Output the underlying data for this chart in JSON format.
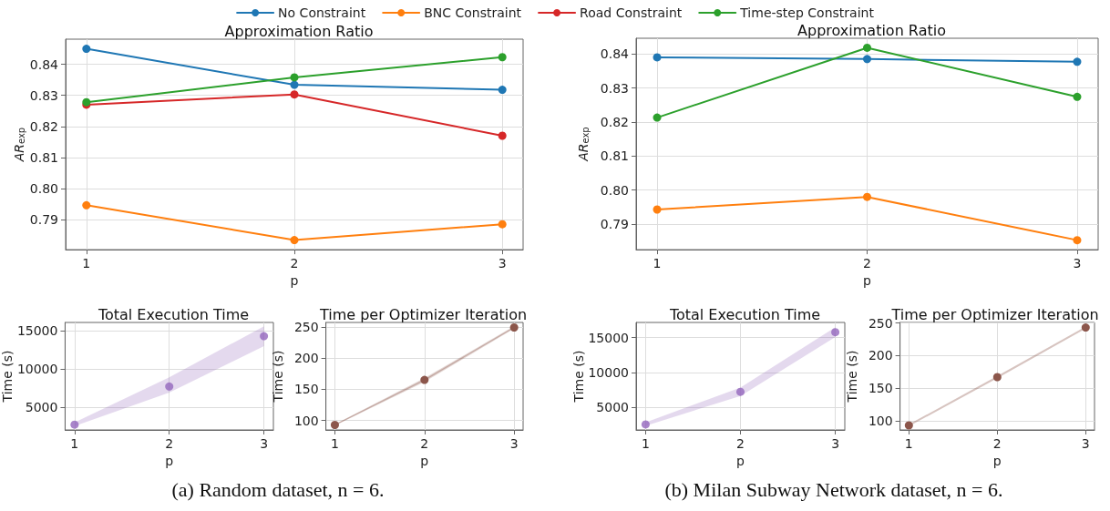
{
  "chart_data": [
    {
      "type": "line",
      "title": "Approximation Ratio",
      "xlabel": "p",
      "ylabel": "AR$_{exp}$",
      "x": [
        1,
        2,
        3
      ],
      "xlim": [
        0.9,
        3.1
      ],
      "xticks": [
        1,
        2,
        3
      ],
      "ylim": [
        0.7803,
        0.8481
      ],
      "yticks": [
        0.79,
        {
          "value": 0.8,
          "label": "0.80"
        },
        0.81,
        0.82,
        0.83,
        0.84
      ],
      "grid": true,
      "legend": "top",
      "marker": "circle",
      "series": [
        {
          "name": "No Constraint",
          "color": "#1f77b4",
          "values": [
            0.845,
            0.8334,
            0.8318
          ]
        },
        {
          "name": "BNC Constraint",
          "color": "#ff7f0e",
          "values": [
            0.7946,
            0.7834,
            0.7885
          ]
        },
        {
          "name": "Road Constraint",
          "color": "#d62728",
          "values": [
            0.827,
            0.8303,
            0.817
          ]
        },
        {
          "name": "Time-step Constraint",
          "color": "#2ca02c",
          "values": [
            0.8278,
            0.8358,
            0.8423
          ]
        }
      ]
    },
    {
      "type": "line",
      "title": "Approximation Ratio",
      "xlabel": "p",
      "ylabel": "AR$_{exp}$",
      "x": [
        1,
        2,
        3
      ],
      "xlim": [
        0.9,
        3.1
      ],
      "xticks": [
        1,
        2,
        3
      ],
      "ylim": [
        0.7825,
        0.8446
      ],
      "yticks": [
        0.79,
        {
          "value": 0.8,
          "label": "0.80"
        },
        0.81,
        0.82,
        0.83,
        0.84
      ],
      "grid": true,
      "marker": "circle",
      "series": [
        {
          "color": "#1f77b4",
          "values": [
            0.839,
            0.8385,
            0.8377
          ]
        },
        {
          "color": "#ff7f0e",
          "values": [
            0.7943,
            0.798,
            0.7853
          ]
        },
        {
          "color": "#2ca02c",
          "values": [
            0.8213,
            0.8418,
            0.8274
          ]
        }
      ]
    },
    {
      "type": "scatter",
      "title": "Total Execution Time",
      "xlabel": "p",
      "ylabel": "Time (s)",
      "x": [
        1,
        2,
        3
      ],
      "xlim": [
        0.9,
        3.1
      ],
      "xticks": [
        1,
        2,
        3
      ],
      "ylim": [
        2000,
        16100
      ],
      "yticks": [
        5000,
        10000,
        15000
      ],
      "grid": true,
      "marker": "circle",
      "annotations": [
        "(a) Random dataset, n = 6."
      ],
      "series": [
        {
          "color": "#9467bd",
          "values": [
            2700,
            7700,
            14300
          ],
          "lower": [
            2500,
            6900,
            13000
          ],
          "upper": [
            3000,
            8900,
            15600
          ]
        }
      ]
    },
    {
      "type": "line",
      "title": "Time per Optimizer Iteration",
      "xlabel": "p",
      "ylabel": "Time (s)",
      "x": [
        1,
        2,
        3
      ],
      "xlim": [
        0.9,
        3.1
      ],
      "xticks": [
        1,
        2,
        3
      ],
      "ylim": [
        85,
        257
      ],
      "yticks": [
        100,
        150,
        200,
        250
      ],
      "grid": true,
      "marker": "circle",
      "series": [
        {
          "color": "#8c564b",
          "values": [
            93,
            165,
            249
          ],
          "lower": [
            92,
            162,
            247
          ],
          "upper": [
            94,
            168,
            251
          ]
        }
      ]
    },
    {
      "type": "scatter",
      "title": "Total Execution Time",
      "xlabel": "p",
      "ylabel": "Time (s)",
      "x": [
        1,
        2,
        3
      ],
      "xlim": [
        0.9,
        3.1
      ],
      "xticks": [
        1,
        2,
        3
      ],
      "ylim": [
        1700,
        17200
      ],
      "yticks": [
        5000,
        10000,
        15000
      ],
      "grid": true,
      "marker": "circle",
      "annotations": [
        "(b) Milan Subway Network dataset, n = 6."
      ],
      "series": [
        {
          "color": "#9467bd",
          "values": [
            2500,
            7200,
            15800
          ],
          "lower": [
            2300,
            6600,
            15100
          ],
          "upper": [
            2800,
            7800,
            16500
          ]
        }
      ]
    },
    {
      "type": "line",
      "title": "Time per Optimizer Iteration",
      "xlabel": "p",
      "ylabel": "Time (s)",
      "x": [
        1,
        2,
        3
      ],
      "xlim": [
        0.9,
        3.1
      ],
      "xticks": [
        1,
        2,
        3
      ],
      "ylim": [
        86,
        250.8
      ],
      "yticks": [
        100,
        150,
        200,
        250
      ],
      "grid": true,
      "marker": "circle",
      "series": [
        {
          "color": "#8c564b",
          "values": [
            93,
            167,
            243
          ]
        }
      ]
    }
  ]
}
